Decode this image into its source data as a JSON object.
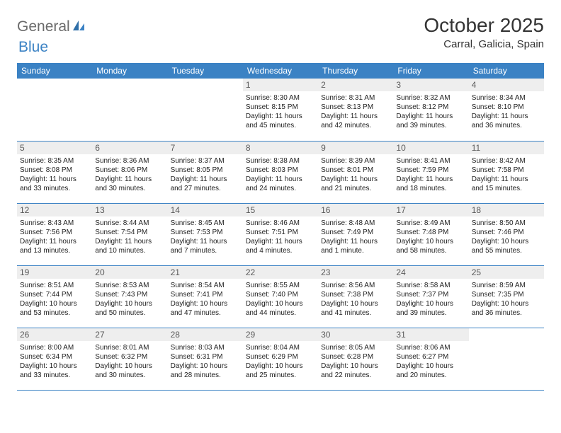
{
  "brand": {
    "part1": "General",
    "part2": "Blue"
  },
  "title": "October 2025",
  "location": "Carral, Galicia, Spain",
  "colors": {
    "header_bg": "#3b82c4",
    "header_text": "#ffffff",
    "daynum_bg": "#eeeeee",
    "border": "#3b82c4",
    "body_text": "#222222",
    "title_text": "#333333",
    "brand_gray": "#6b6b6b"
  },
  "daysOfWeek": [
    "Sunday",
    "Monday",
    "Tuesday",
    "Wednesday",
    "Thursday",
    "Friday",
    "Saturday"
  ],
  "weeks": [
    [
      {
        "n": "",
        "lines": []
      },
      {
        "n": "",
        "lines": []
      },
      {
        "n": "",
        "lines": []
      },
      {
        "n": "1",
        "lines": [
          "Sunrise: 8:30 AM",
          "Sunset: 8:15 PM",
          "Daylight: 11 hours and 45 minutes."
        ]
      },
      {
        "n": "2",
        "lines": [
          "Sunrise: 8:31 AM",
          "Sunset: 8:13 PM",
          "Daylight: 11 hours and 42 minutes."
        ]
      },
      {
        "n": "3",
        "lines": [
          "Sunrise: 8:32 AM",
          "Sunset: 8:12 PM",
          "Daylight: 11 hours and 39 minutes."
        ]
      },
      {
        "n": "4",
        "lines": [
          "Sunrise: 8:34 AM",
          "Sunset: 8:10 PM",
          "Daylight: 11 hours and 36 minutes."
        ]
      }
    ],
    [
      {
        "n": "5",
        "lines": [
          "Sunrise: 8:35 AM",
          "Sunset: 8:08 PM",
          "Daylight: 11 hours and 33 minutes."
        ]
      },
      {
        "n": "6",
        "lines": [
          "Sunrise: 8:36 AM",
          "Sunset: 8:06 PM",
          "Daylight: 11 hours and 30 minutes."
        ]
      },
      {
        "n": "7",
        "lines": [
          "Sunrise: 8:37 AM",
          "Sunset: 8:05 PM",
          "Daylight: 11 hours and 27 minutes."
        ]
      },
      {
        "n": "8",
        "lines": [
          "Sunrise: 8:38 AM",
          "Sunset: 8:03 PM",
          "Daylight: 11 hours and 24 minutes."
        ]
      },
      {
        "n": "9",
        "lines": [
          "Sunrise: 8:39 AM",
          "Sunset: 8:01 PM",
          "Daylight: 11 hours and 21 minutes."
        ]
      },
      {
        "n": "10",
        "lines": [
          "Sunrise: 8:41 AM",
          "Sunset: 7:59 PM",
          "Daylight: 11 hours and 18 minutes."
        ]
      },
      {
        "n": "11",
        "lines": [
          "Sunrise: 8:42 AM",
          "Sunset: 7:58 PM",
          "Daylight: 11 hours and 15 minutes."
        ]
      }
    ],
    [
      {
        "n": "12",
        "lines": [
          "Sunrise: 8:43 AM",
          "Sunset: 7:56 PM",
          "Daylight: 11 hours and 13 minutes."
        ]
      },
      {
        "n": "13",
        "lines": [
          "Sunrise: 8:44 AM",
          "Sunset: 7:54 PM",
          "Daylight: 11 hours and 10 minutes."
        ]
      },
      {
        "n": "14",
        "lines": [
          "Sunrise: 8:45 AM",
          "Sunset: 7:53 PM",
          "Daylight: 11 hours and 7 minutes."
        ]
      },
      {
        "n": "15",
        "lines": [
          "Sunrise: 8:46 AM",
          "Sunset: 7:51 PM",
          "Daylight: 11 hours and 4 minutes."
        ]
      },
      {
        "n": "16",
        "lines": [
          "Sunrise: 8:48 AM",
          "Sunset: 7:49 PM",
          "Daylight: 11 hours and 1 minute."
        ]
      },
      {
        "n": "17",
        "lines": [
          "Sunrise: 8:49 AM",
          "Sunset: 7:48 PM",
          "Daylight: 10 hours and 58 minutes."
        ]
      },
      {
        "n": "18",
        "lines": [
          "Sunrise: 8:50 AM",
          "Sunset: 7:46 PM",
          "Daylight: 10 hours and 55 minutes."
        ]
      }
    ],
    [
      {
        "n": "19",
        "lines": [
          "Sunrise: 8:51 AM",
          "Sunset: 7:44 PM",
          "Daylight: 10 hours and 53 minutes."
        ]
      },
      {
        "n": "20",
        "lines": [
          "Sunrise: 8:53 AM",
          "Sunset: 7:43 PM",
          "Daylight: 10 hours and 50 minutes."
        ]
      },
      {
        "n": "21",
        "lines": [
          "Sunrise: 8:54 AM",
          "Sunset: 7:41 PM",
          "Daylight: 10 hours and 47 minutes."
        ]
      },
      {
        "n": "22",
        "lines": [
          "Sunrise: 8:55 AM",
          "Sunset: 7:40 PM",
          "Daylight: 10 hours and 44 minutes."
        ]
      },
      {
        "n": "23",
        "lines": [
          "Sunrise: 8:56 AM",
          "Sunset: 7:38 PM",
          "Daylight: 10 hours and 41 minutes."
        ]
      },
      {
        "n": "24",
        "lines": [
          "Sunrise: 8:58 AM",
          "Sunset: 7:37 PM",
          "Daylight: 10 hours and 39 minutes."
        ]
      },
      {
        "n": "25",
        "lines": [
          "Sunrise: 8:59 AM",
          "Sunset: 7:35 PM",
          "Daylight: 10 hours and 36 minutes."
        ]
      }
    ],
    [
      {
        "n": "26",
        "lines": [
          "Sunrise: 8:00 AM",
          "Sunset: 6:34 PM",
          "Daylight: 10 hours and 33 minutes."
        ]
      },
      {
        "n": "27",
        "lines": [
          "Sunrise: 8:01 AM",
          "Sunset: 6:32 PM",
          "Daylight: 10 hours and 30 minutes."
        ]
      },
      {
        "n": "28",
        "lines": [
          "Sunrise: 8:03 AM",
          "Sunset: 6:31 PM",
          "Daylight: 10 hours and 28 minutes."
        ]
      },
      {
        "n": "29",
        "lines": [
          "Sunrise: 8:04 AM",
          "Sunset: 6:29 PM",
          "Daylight: 10 hours and 25 minutes."
        ]
      },
      {
        "n": "30",
        "lines": [
          "Sunrise: 8:05 AM",
          "Sunset: 6:28 PM",
          "Daylight: 10 hours and 22 minutes."
        ]
      },
      {
        "n": "31",
        "lines": [
          "Sunrise: 8:06 AM",
          "Sunset: 6:27 PM",
          "Daylight: 10 hours and 20 minutes."
        ]
      },
      {
        "n": "",
        "lines": []
      }
    ]
  ]
}
